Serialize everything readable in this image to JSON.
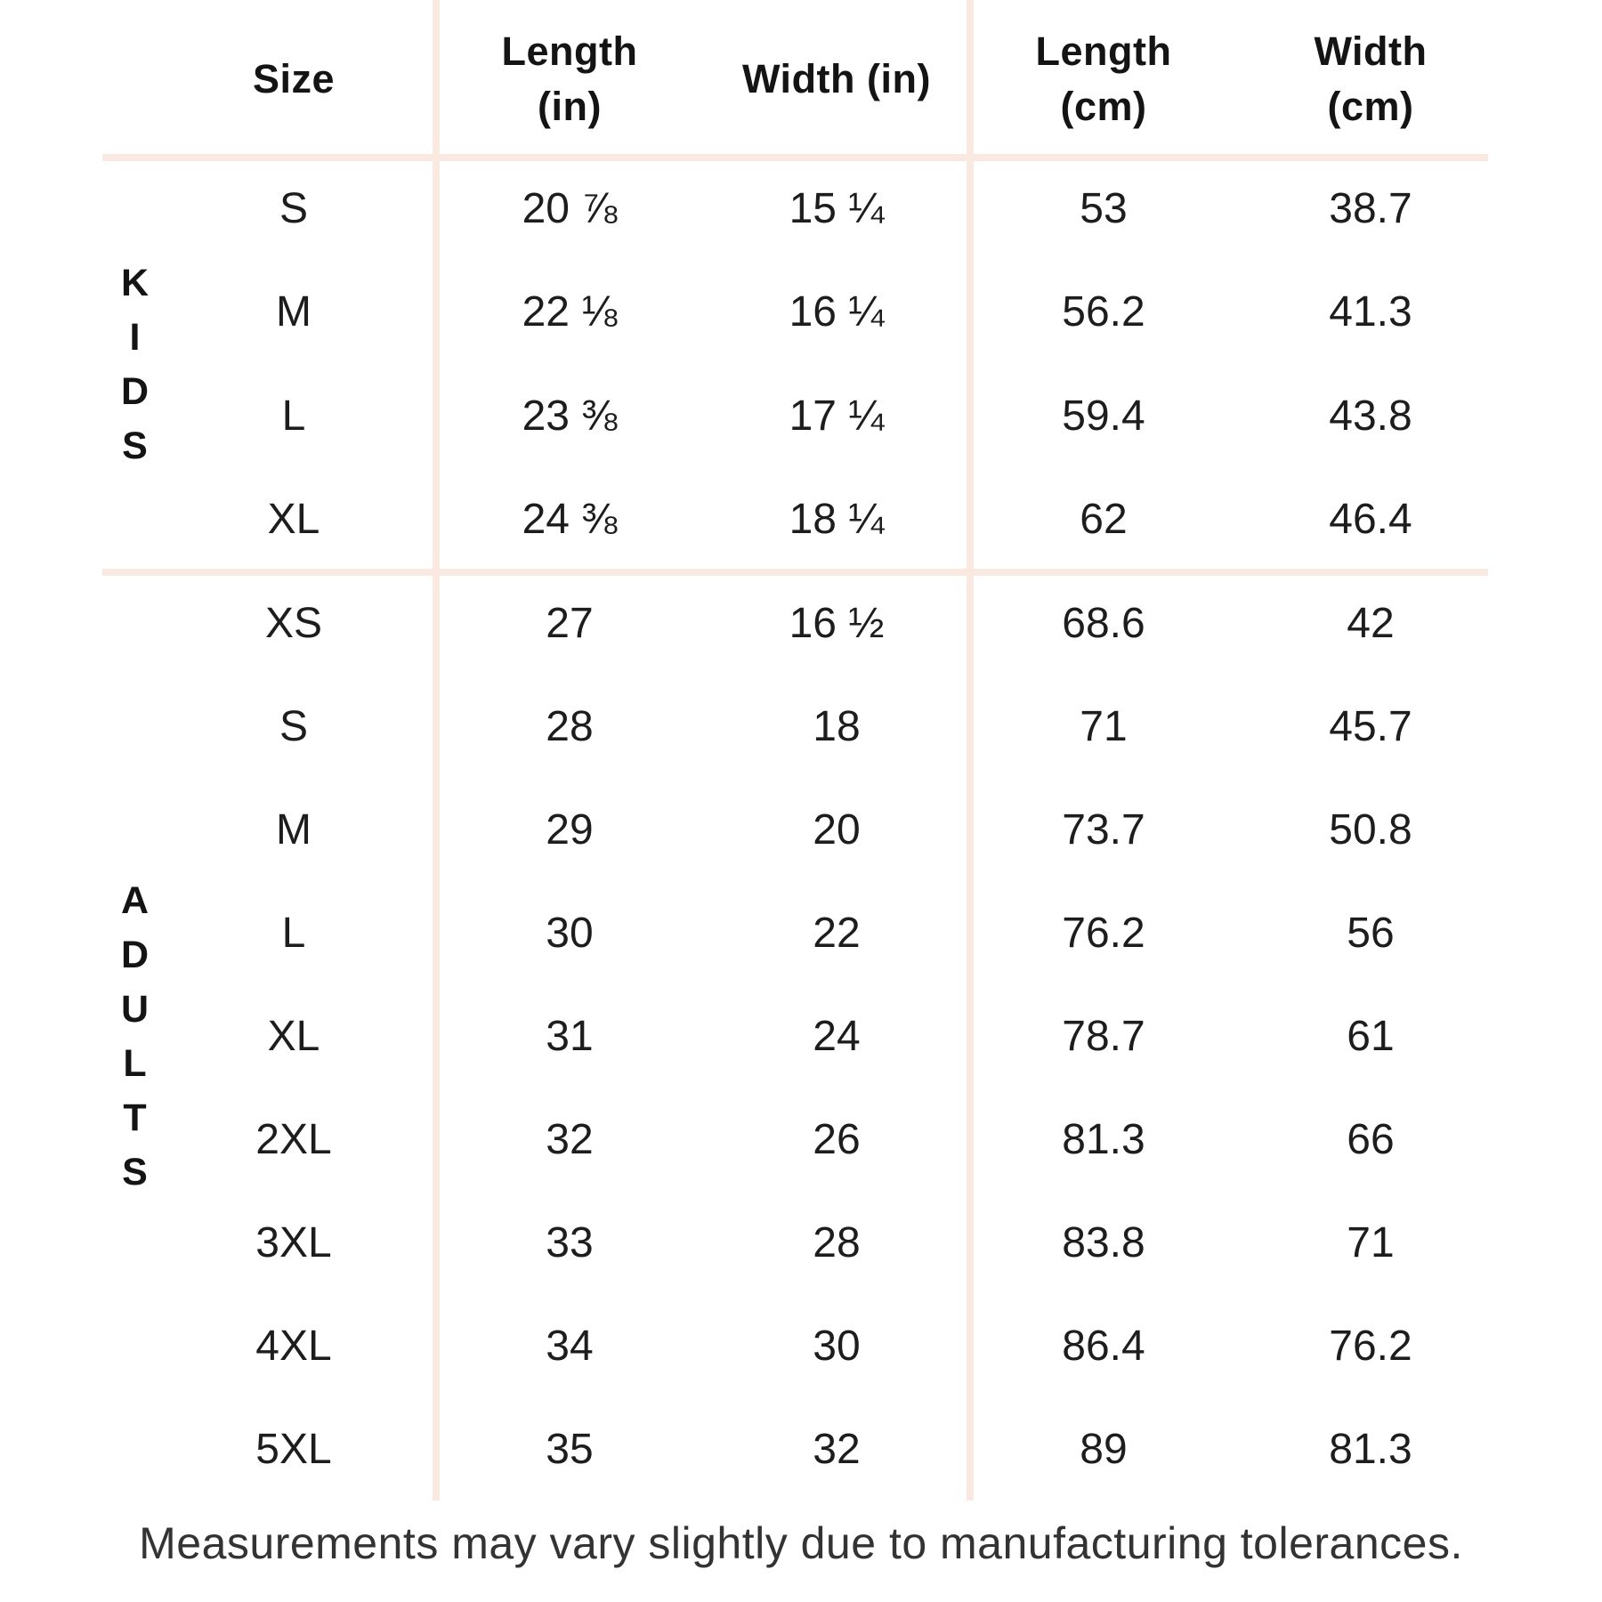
{
  "chart_data": {
    "type": "table",
    "header": {
      "size": "Size",
      "length_in_l1": "Length",
      "length_in_l2": "(in)",
      "width_in": "Width (in)",
      "length_cm_l1": "Length",
      "length_cm_l2": "(cm)",
      "width_cm_l1": "Width",
      "width_cm_l2": "(cm)"
    },
    "groups": [
      {
        "name": "KIDS",
        "letters": [
          "K",
          "I",
          "D",
          "S"
        ],
        "rows": [
          {
            "size": "S",
            "length_in": "20 ⅞",
            "width_in": "15 ¼",
            "length_cm": "53",
            "width_cm": "38.7"
          },
          {
            "size": "M",
            "length_in": "22 ⅛",
            "width_in": "16 ¼",
            "length_cm": "56.2",
            "width_cm": "41.3"
          },
          {
            "size": "L",
            "length_in": "23 ⅜",
            "width_in": "17 ¼",
            "length_cm": "59.4",
            "width_cm": "43.8"
          },
          {
            "size": "XL",
            "length_in": "24 ⅜",
            "width_in": "18 ¼",
            "length_cm": "62",
            "width_cm": "46.4"
          }
        ]
      },
      {
        "name": "ADULTS",
        "letters": [
          "A",
          "D",
          "U",
          "L",
          "T",
          "S"
        ],
        "rows": [
          {
            "size": "XS",
            "length_in": "27",
            "width_in": "16 ½",
            "length_cm": "68.6",
            "width_cm": "42"
          },
          {
            "size": "S",
            "length_in": "28",
            "width_in": "18",
            "length_cm": "71",
            "width_cm": "45.7"
          },
          {
            "size": "M",
            "length_in": "29",
            "width_in": "20",
            "length_cm": "73.7",
            "width_cm": "50.8"
          },
          {
            "size": "L",
            "length_in": "30",
            "width_in": "22",
            "length_cm": "76.2",
            "width_cm": "56"
          },
          {
            "size": "XL",
            "length_in": "31",
            "width_in": "24",
            "length_cm": "78.7",
            "width_cm": "61"
          },
          {
            "size": "2XL",
            "length_in": "32",
            "width_in": "26",
            "length_cm": "81.3",
            "width_cm": "66"
          },
          {
            "size": "3XL",
            "length_in": "33",
            "width_in": "28",
            "length_cm": "83.8",
            "width_cm": "71"
          },
          {
            "size": "4XL",
            "length_in": "34",
            "width_in": "30",
            "length_cm": "86.4",
            "width_cm": "76.2"
          },
          {
            "size": "5XL",
            "length_in": "35",
            "width_in": "32",
            "length_cm": "89",
            "width_cm": "81.3"
          }
        ]
      }
    ]
  },
  "footer": {
    "note": "Measurements may vary slightly due to manufacturing tolerances."
  },
  "colors": {
    "divider_line": "#fae9e0",
    "table_text": "#1d1d1d",
    "header_text": "#141414",
    "footer_text": "#333333",
    "background": "#ffffff"
  }
}
